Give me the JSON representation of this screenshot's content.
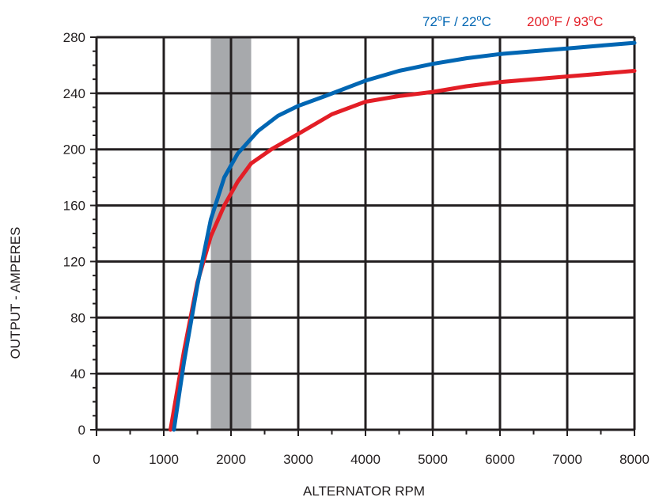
{
  "chart_data": {
    "type": "line",
    "title": "",
    "xlabel": "ALTERNATOR RPM",
    "ylabel": "OUTPUT - AMPERES",
    "xlim": [
      0,
      8000
    ],
    "ylim": [
      0,
      280
    ],
    "x_ticks": [
      0,
      1000,
      2000,
      3000,
      4000,
      5000,
      6000,
      7000,
      8000
    ],
    "y_ticks": [
      0,
      40,
      80,
      120,
      160,
      200,
      240,
      280
    ],
    "grid": true,
    "legend_position": "top-right",
    "shaded_band": {
      "x_start": 1700,
      "x_end": 2300,
      "color": "#a7a9ac"
    },
    "series": [
      {
        "name": "72°F / 22°C",
        "color": "#0066b3",
        "x": [
          1150,
          1300,
          1500,
          1700,
          1900,
          2100,
          2400,
          2700,
          3000,
          3400,
          4000,
          4500,
          5000,
          5500,
          6000,
          6500,
          7000,
          7500,
          8000
        ],
        "y": [
          0,
          48,
          103,
          150,
          180,
          197,
          213,
          224,
          231,
          238,
          249,
          256,
          261,
          265,
          268,
          270,
          272,
          274,
          276
        ]
      },
      {
        "name": "200°F / 93°C",
        "color": "#e31e26",
        "x": [
          1100,
          1300,
          1500,
          1700,
          1900,
          2100,
          2300,
          2600,
          3000,
          3500,
          4000,
          4500,
          5000,
          5500,
          6000,
          6500,
          7000,
          7500,
          8000
        ],
        "y": [
          0,
          56,
          105,
          138,
          160,
          177,
          190,
          200,
          211,
          225,
          234,
          238,
          241,
          245,
          248,
          250,
          252,
          254,
          256
        ]
      }
    ]
  },
  "legend": {
    "blue": {
      "value1": "72",
      "unit1": "F / 22",
      "unit2": "C",
      "deg": "o"
    },
    "red": {
      "value1": "200",
      "unit1": "F / 93",
      "unit2": "C",
      "deg": "o"
    }
  }
}
